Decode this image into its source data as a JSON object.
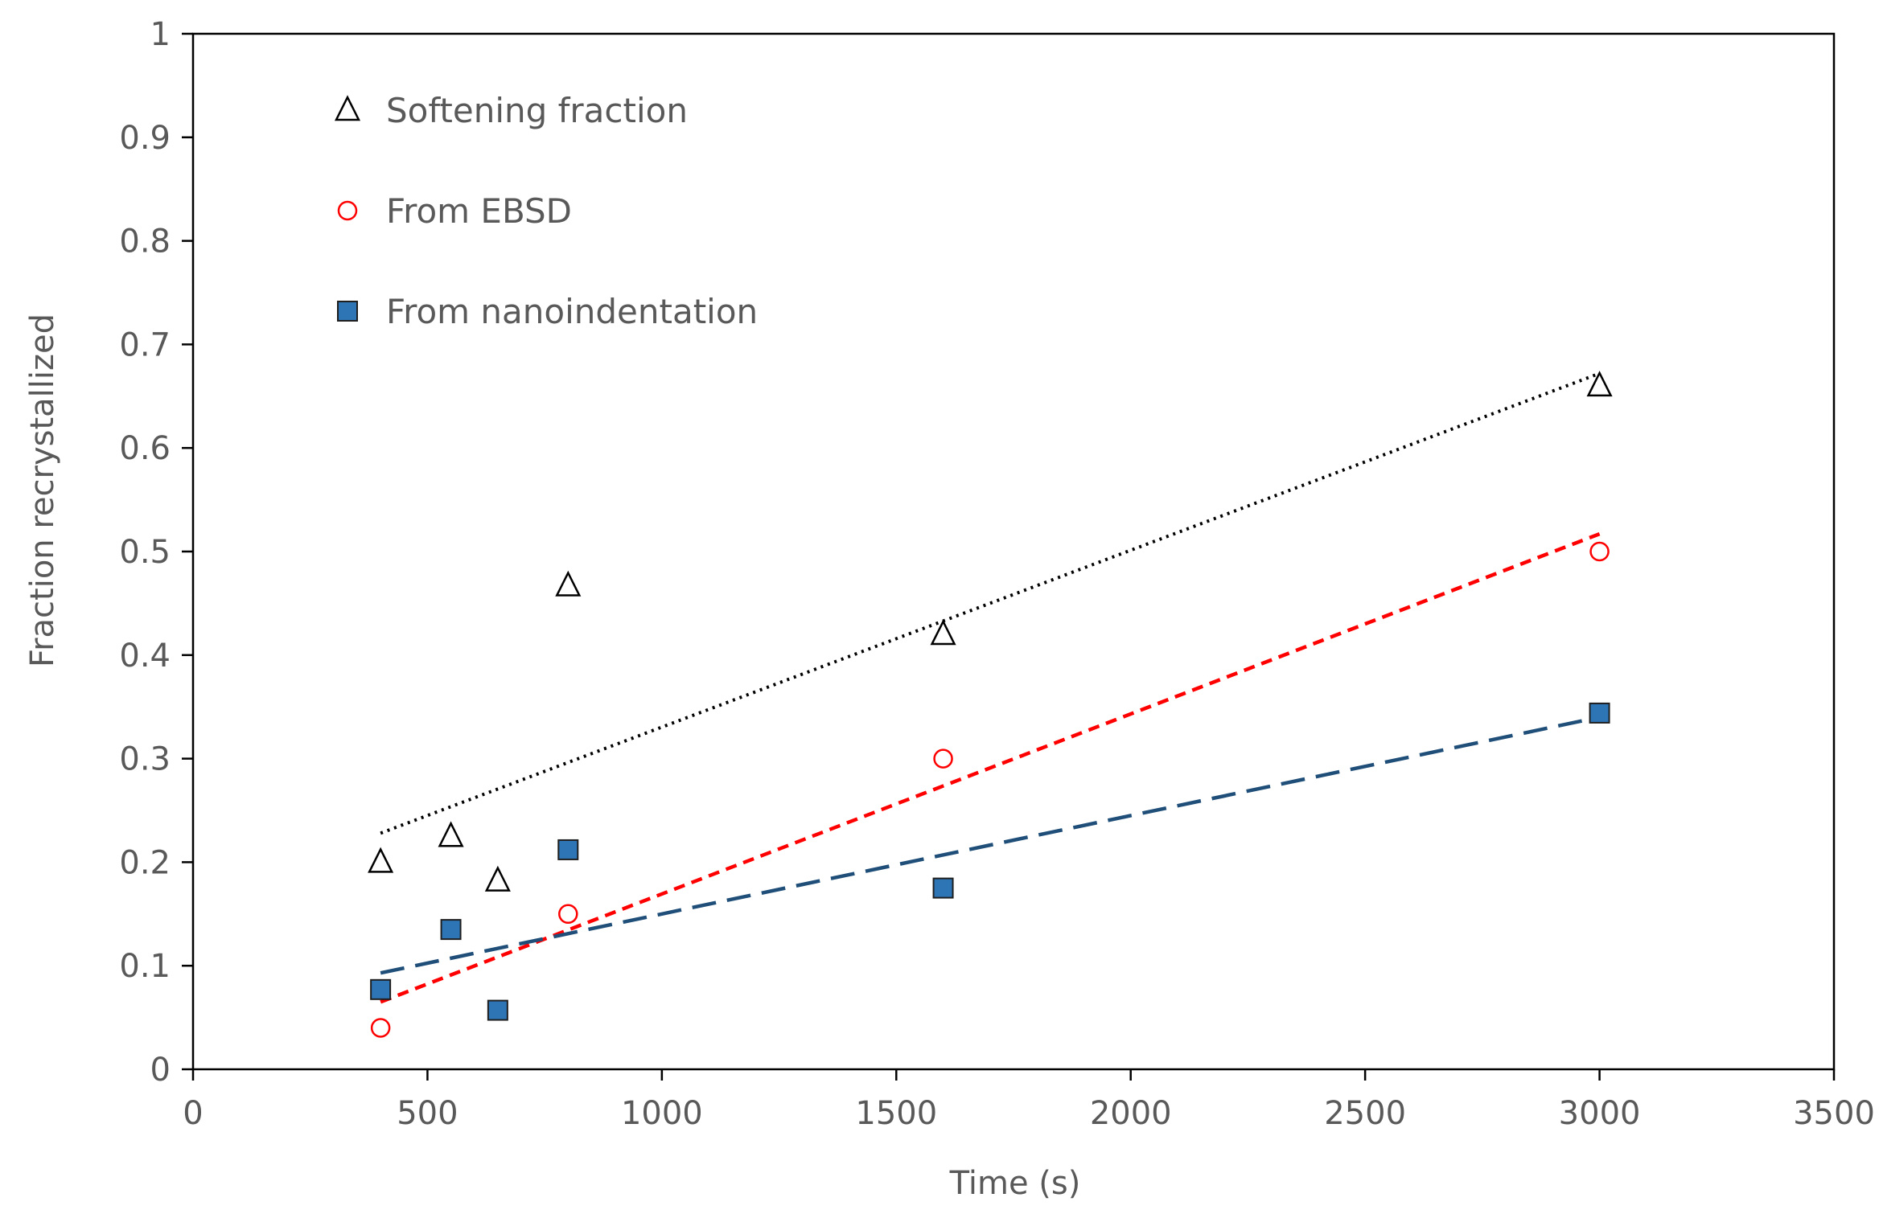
{
  "chart_data": {
    "type": "scatter",
    "title": "",
    "xlabel": "Time (s)",
    "ylabel": "Fraction recrystallized",
    "xlim": [
      0,
      3500
    ],
    "ylim": [
      0,
      1
    ],
    "xticks": [
      0,
      500,
      1000,
      1500,
      2000,
      2500,
      3000,
      3500
    ],
    "xtick_labels": [
      "0",
      "500",
      "1000",
      "1500",
      "2000",
      "2500",
      "3000",
      "3500"
    ],
    "yticks": [
      0,
      0.1,
      0.2,
      0.3,
      0.4,
      0.5,
      0.6,
      0.7,
      0.8,
      0.9,
      1
    ],
    "ytick_labels": [
      "0",
      "0.1",
      "0.2",
      "0.3",
      "0.4",
      "0.5",
      "0.6",
      "0.7",
      "0.8",
      "0.9",
      "1"
    ],
    "grid": false,
    "legend_position": "top-left",
    "series": [
      {
        "name": "Softening fraction",
        "marker": "triangle-open",
        "color": "#000000",
        "x": [
          400,
          550,
          650,
          800,
          1600,
          3000
        ],
        "y": [
          0.2,
          0.225,
          0.182,
          0.467,
          0.42,
          0.66
        ],
        "trendline": {
          "style": "dotted",
          "color": "#000000",
          "x": [
            400,
            3000
          ],
          "y": [
            0.228,
            0.672
          ]
        }
      },
      {
        "name": "From EBSD",
        "marker": "circle-open",
        "color": "#ff0000",
        "x": [
          400,
          800,
          1600,
          3000
        ],
        "y": [
          0.04,
          0.15,
          0.3,
          0.5
        ],
        "trendline": {
          "style": "dashed",
          "color": "#ff0000",
          "x": [
            400,
            3000
          ],
          "y": [
            0.065,
            0.517
          ]
        }
      },
      {
        "name": "From nanoindentation",
        "marker": "square-filled",
        "color": "#2e75b6",
        "x": [
          400,
          550,
          650,
          800,
          1600,
          3000
        ],
        "y": [
          0.077,
          0.135,
          0.057,
          0.212,
          0.175,
          0.344
        ],
        "trendline": {
          "style": "long-dash",
          "color": "#1f4e79",
          "x": [
            400,
            3000
          ],
          "y": [
            0.093,
            0.34
          ]
        }
      }
    ]
  }
}
